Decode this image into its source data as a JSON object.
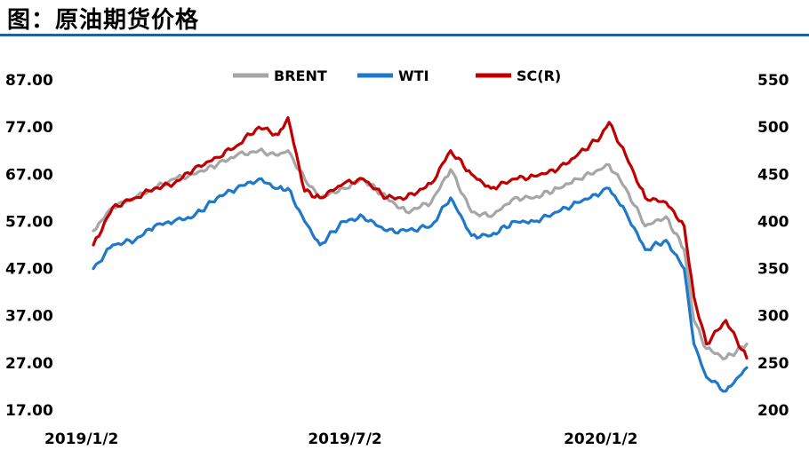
{
  "header": {
    "title": "图：原油期货价格"
  },
  "chart_data": {
    "type": "line",
    "title": "图：原油期货价格",
    "x_ticks": [
      "2019/1/2",
      "2019/7/2",
      "2020/1/2"
    ],
    "x_range": [
      "2019/1/2",
      "2020/4/16"
    ],
    "y_left": {
      "ticks": [
        "87.00",
        "77.00",
        "67.00",
        "57.00",
        "47.00",
        "37.00",
        "27.00",
        "17.00"
      ],
      "range": [
        17,
        87
      ]
    },
    "y_right": {
      "ticks": [
        "550",
        "500",
        "450",
        "400",
        "350",
        "300",
        "250",
        "200"
      ],
      "range": [
        200,
        550
      ]
    },
    "legend": [
      "BRENT",
      "WTI",
      "SC(R)"
    ],
    "legend_position": "top-center",
    "series": [
      {
        "name": "BRENT",
        "color": "#a6a6a6",
        "axis": "left",
        "x": [
          "2019/1/2",
          "2019/1/16",
          "2019/2/1",
          "2019/2/15",
          "2019/3/1",
          "2019/3/15",
          "2019/4/1",
          "2019/4/15",
          "2019/5/1",
          "2019/5/15",
          "2019/5/22",
          "2019/6/3",
          "2019/6/14",
          "2019/7/1",
          "2019/7/15",
          "2019/8/1",
          "2019/8/15",
          "2019/9/2",
          "2019/9/16",
          "2019/10/1",
          "2019/10/15",
          "2019/11/1",
          "2019/11/15",
          "2019/12/2",
          "2019/12/16",
          "2020/1/2",
          "2020/1/8",
          "2020/1/20",
          "2020/2/3",
          "2020/2/18",
          "2020/3/2",
          "2020/3/9",
          "2020/3/18",
          "2020/4/1",
          "2020/4/16"
        ],
        "y": [
          55,
          60,
          62,
          64,
          66,
          67,
          69,
          71,
          72,
          71,
          72,
          66,
          62,
          64,
          66,
          62,
          59,
          61,
          68,
          59,
          58,
          62,
          62,
          64,
          66,
          68,
          69,
          64,
          56,
          58,
          51,
          36,
          30,
          28,
          31
        ]
      },
      {
        "name": "WTI",
        "color": "#1f78c8",
        "axis": "left",
        "x": [
          "2019/1/2",
          "2019/1/16",
          "2019/2/1",
          "2019/2/15",
          "2019/3/1",
          "2019/3/15",
          "2019/4/1",
          "2019/4/15",
          "2019/5/1",
          "2019/5/15",
          "2019/5/22",
          "2019/6/3",
          "2019/6/14",
          "2019/7/1",
          "2019/7/15",
          "2019/8/1",
          "2019/8/15",
          "2019/9/2",
          "2019/9/16",
          "2019/10/1",
          "2019/10/15",
          "2019/11/1",
          "2019/11/15",
          "2019/12/2",
          "2019/12/16",
          "2020/1/2",
          "2020/1/8",
          "2020/1/20",
          "2020/2/3",
          "2020/2/18",
          "2020/3/2",
          "2020/3/9",
          "2020/3/18",
          "2020/4/1",
          "2020/4/16"
        ],
        "y": [
          47,
          52,
          53,
          56,
          57,
          58,
          62,
          64,
          66,
          64,
          64,
          57,
          52,
          57,
          58,
          55,
          55,
          56,
          62,
          54,
          54,
          57,
          57,
          59,
          61,
          63,
          64,
          59,
          51,
          53,
          47,
          31,
          24,
          21,
          26
        ]
      },
      {
        "name": "SC(R)",
        "color": "#c00000",
        "axis": "right",
        "x": [
          "2019/1/2",
          "2019/1/16",
          "2019/2/1",
          "2019/2/15",
          "2019/3/1",
          "2019/3/15",
          "2019/4/1",
          "2019/4/15",
          "2019/5/1",
          "2019/5/15",
          "2019/5/22",
          "2019/6/3",
          "2019/6/14",
          "2019/7/1",
          "2019/7/15",
          "2019/8/1",
          "2019/8/15",
          "2019/9/2",
          "2019/9/16",
          "2019/10/1",
          "2019/10/15",
          "2019/11/1",
          "2019/11/15",
          "2019/12/2",
          "2019/12/16",
          "2020/1/2",
          "2020/1/8",
          "2020/1/20",
          "2020/2/3",
          "2020/2/18",
          "2020/3/2",
          "2020/3/9",
          "2020/3/18",
          "2020/4/1",
          "2020/4/16"
        ],
        "y": [
          375,
          415,
          425,
          435,
          440,
          455,
          468,
          480,
          500,
          492,
          510,
          432,
          425,
          440,
          445,
          425,
          425,
          440,
          475,
          450,
          435,
          445,
          448,
          455,
          470,
          490,
          505,
          470,
          425,
          420,
          395,
          320,
          270,
          295,
          255
        ]
      }
    ]
  }
}
